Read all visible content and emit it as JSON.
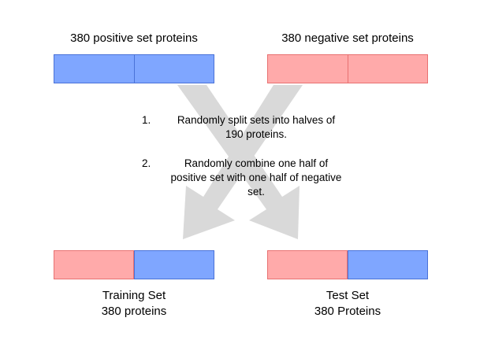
{
  "positive_set": {
    "label": "380 positive set proteins",
    "color": "#7fa6ff"
  },
  "negative_set": {
    "label": "380 negative set proteins",
    "color": "#ffaaaa"
  },
  "steps": [
    {
      "number": "1.",
      "text": "Randomly split sets into halves of 190 proteins."
    },
    {
      "number": "2.",
      "text": "Randomly combine one half of positive set with one half of negative set."
    }
  ],
  "training_set": {
    "title": "Training Set",
    "subtitle": "380 proteins"
  },
  "test_set": {
    "title": "Test Set",
    "subtitle": "380 Proteins"
  },
  "arrow_color": "#d9d9d9"
}
